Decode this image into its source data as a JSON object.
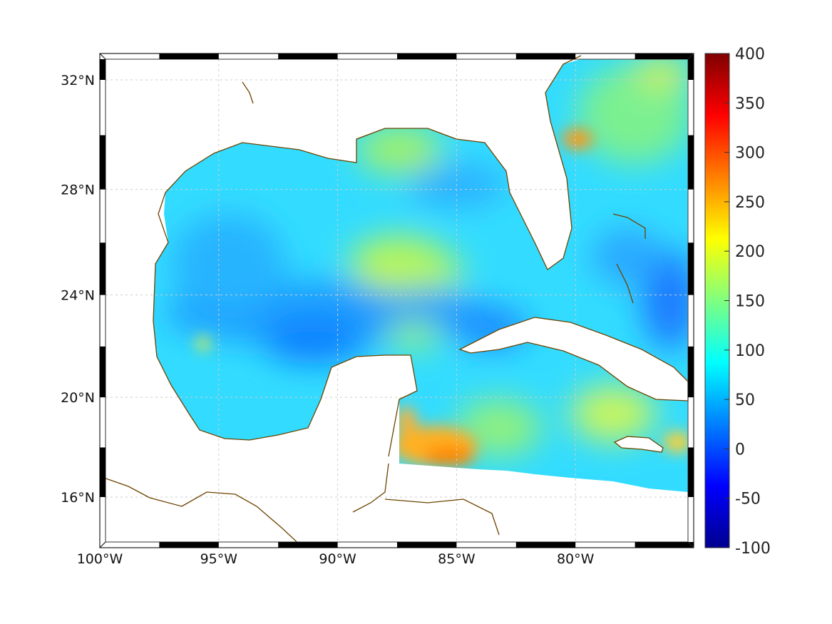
{
  "map": {
    "lon_ticks": [
      {
        "value": -100,
        "label": "100°W"
      },
      {
        "value": -95,
        "label": "95°W"
      },
      {
        "value": -90,
        "label": "90°W"
      },
      {
        "value": -85,
        "label": "85°W"
      },
      {
        "value": -80,
        "label": "80°W"
      }
    ],
    "lat_ticks": [
      {
        "value": 32,
        "label": "32°N"
      },
      {
        "value": 28,
        "label": "28°N"
      },
      {
        "value": 24,
        "label": "24°N"
      },
      {
        "value": 20,
        "label": "20°N"
      },
      {
        "value": 16,
        "label": "16°N"
      }
    ],
    "lon_range": [
      -100,
      -75
    ],
    "lat_range": [
      14.3,
      33
    ],
    "coast_color": "#6b4400"
  },
  "colorbar": {
    "colormap": "jet",
    "range": [
      -100,
      400
    ],
    "ticks": [
      "400",
      "350",
      "300",
      "250",
      "200",
      "150",
      "100",
      "50",
      "0",
      "-50",
      "-100"
    ],
    "tick_values": [
      400,
      350,
      300,
      250,
      200,
      150,
      100,
      50,
      0,
      -50,
      -100
    ]
  }
}
